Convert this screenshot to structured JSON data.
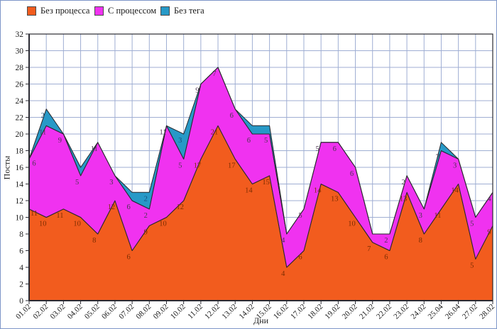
{
  "legend": [
    {
      "label": "Без процесса",
      "color": "#f25c1e"
    },
    {
      "label": "С процессом",
      "color": "#f032f0"
    },
    {
      "label": "Без тега",
      "color": "#2799c7"
    }
  ],
  "axes": {
    "x_title": "Дни",
    "y_title": "Посты"
  },
  "colors": {
    "grid": "#9faed3",
    "plot_border": "#2b2b33",
    "area_outline": "#26262b",
    "page_border": "#7e96c8"
  },
  "chart_data": {
    "type": "area",
    "stacked": true,
    "xlabel": "Дни",
    "ylabel": "Посты",
    "ylim": [
      0,
      32
    ],
    "ytick_step": 2,
    "grid": true,
    "legend_position": "top-left",
    "label_min_value": 2,
    "categories": [
      "01.02",
      "02.02",
      "03.02",
      "04.02",
      "05.02",
      "06.02",
      "07.02",
      "08.02",
      "09.02",
      "10.02",
      "11.02",
      "12.02",
      "13.02",
      "14.02",
      "15.02",
      "16.02",
      "17.02",
      "18.02",
      "19.02",
      "20.02",
      "21.02",
      "22.02",
      "23.02",
      "24.02",
      "25.04",
      "26.04",
      "27.02",
      "28.02"
    ],
    "series": [
      {
        "name": "Без процесса",
        "color": "#f25c1e",
        "label_color": "#7b2d00",
        "values": [
          11,
          10,
          11,
          10,
          8,
          12,
          6,
          9,
          10,
          12,
          17,
          21,
          17,
          14,
          15,
          4,
          6,
          14,
          13,
          10,
          7,
          6,
          13,
          8,
          11,
          14,
          5,
          9
        ]
      },
      {
        "name": "С процессом",
        "color": "#f032f0",
        "label_color": "#4a3550",
        "values": [
          6,
          11,
          9,
          5,
          11,
          3,
          6,
          2,
          11,
          5,
          9,
          7,
          6,
          6,
          5,
          4,
          5,
          5,
          6,
          6,
          1,
          2,
          2,
          3,
          7,
          3,
          5,
          4
        ]
      },
      {
        "name": "Без тега",
        "color": "#2799c7",
        "label_color": "#174e7e",
        "values": [
          0,
          2,
          0,
          1,
          0,
          0,
          1,
          2,
          0,
          3,
          0,
          0,
          0,
          1,
          1,
          0,
          0,
          0,
          0,
          0,
          0,
          0,
          0,
          0,
          1,
          0,
          0,
          0
        ]
      }
    ]
  }
}
